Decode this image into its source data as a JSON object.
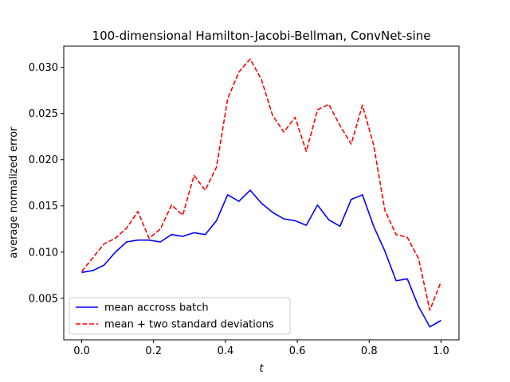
{
  "chart_data": {
    "type": "line",
    "title": "100-dimensional Hamilton-Jacobi-Bellman, ConvNet-sine",
    "xlabel": "t",
    "ylabel": "average normalized error",
    "xlim": [
      -0.05,
      1.05
    ],
    "ylim": [
      0.0005,
      0.0323
    ],
    "xticks": [
      0.0,
      0.2,
      0.4,
      0.6,
      0.8,
      1.0
    ],
    "xtick_labels": [
      "0.0",
      "0.2",
      "0.4",
      "0.6",
      "0.8",
      "1.0"
    ],
    "yticks": [
      0.005,
      0.01,
      0.015,
      0.02,
      0.025,
      0.03
    ],
    "ytick_labels": [
      "0.005",
      "0.010",
      "0.015",
      "0.020",
      "0.025",
      "0.030"
    ],
    "grid": false,
    "legend_position": "lower-left",
    "x": [
      0.0,
      0.0312,
      0.0625,
      0.0938,
      0.125,
      0.1562,
      0.1875,
      0.2188,
      0.25,
      0.2812,
      0.3125,
      0.3438,
      0.375,
      0.4062,
      0.4375,
      0.4688,
      0.5,
      0.5312,
      0.5625,
      0.5938,
      0.625,
      0.6562,
      0.6875,
      0.7188,
      0.75,
      0.7812,
      0.8125,
      0.8438,
      0.875,
      0.9062,
      0.9375,
      0.9688,
      1.0
    ],
    "series": [
      {
        "name": "mean accross batch",
        "color": "#0000ff",
        "style": "solid",
        "values": [
          0.0078,
          0.008,
          0.0086,
          0.01,
          0.0111,
          0.0113,
          0.0113,
          0.0111,
          0.0119,
          0.0117,
          0.0121,
          0.0119,
          0.0134,
          0.0162,
          0.0155,
          0.0167,
          0.0153,
          0.0143,
          0.0136,
          0.0134,
          0.0129,
          0.0151,
          0.0135,
          0.0128,
          0.0157,
          0.0162,
          0.0128,
          0.0101,
          0.0069,
          0.0071,
          0.0041,
          0.0019,
          0.0026
        ]
      },
      {
        "name": "mean + two standard deviations",
        "color": "#ff0000",
        "style": "dashed",
        "values": [
          0.0079,
          0.0094,
          0.0109,
          0.0115,
          0.0126,
          0.0144,
          0.0115,
          0.0125,
          0.0151,
          0.014,
          0.0183,
          0.0167,
          0.0192,
          0.0266,
          0.0295,
          0.0309,
          0.0287,
          0.0248,
          0.023,
          0.0246,
          0.0209,
          0.0254,
          0.026,
          0.0237,
          0.0217,
          0.0259,
          0.0216,
          0.0145,
          0.0119,
          0.0116,
          0.0093,
          0.0037,
          0.0068
        ]
      }
    ]
  }
}
